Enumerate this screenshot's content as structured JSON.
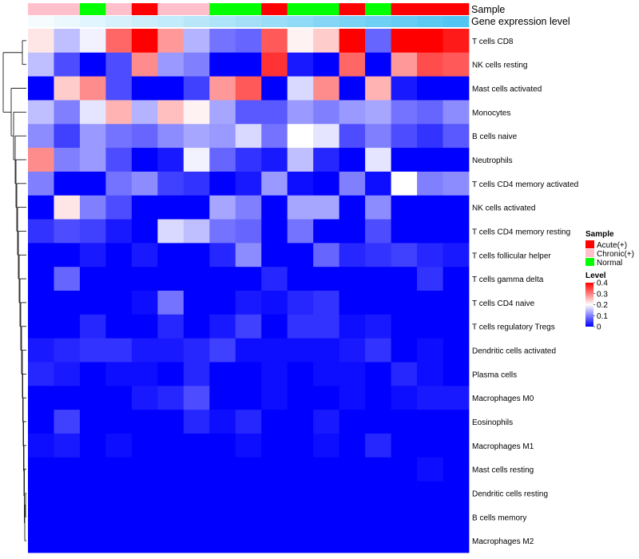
{
  "chart_data": {
    "type": "heatmap",
    "annotation_labels": [
      "Sample",
      "Gene expression level"
    ],
    "sample_annotation": [
      "Chronic(+)",
      "Chronic(+)",
      "Normal",
      "Chronic(+)",
      "Acute(+)",
      "Chronic(+)",
      "Chronic(+)",
      "Normal",
      "Normal",
      "Acute(+)",
      "Normal",
      "Normal",
      "Acute(+)",
      "Normal",
      "Acute(+)",
      "Acute(+)",
      "Acute(+)"
    ],
    "gene_expression_level": [
      0.05,
      0.1,
      0.15,
      0.2,
      0.25,
      0.3,
      0.35,
      0.4,
      0.45,
      0.5,
      0.55,
      0.6,
      0.65,
      0.7,
      0.75,
      0.8,
      0.85
    ],
    "rows": [
      "T cells CD8",
      "NK cells resting",
      "Mast cells activated",
      "Monocytes",
      "B cells naive",
      "Neutrophils",
      "T cells CD4 memory activated",
      "NK cells activated",
      "T cells CD4 memory resting",
      "T cells follicular helper",
      "T cells gamma delta",
      "T cells CD4 naive",
      "T cells regulatory  Tregs",
      "Dendritic cells activated",
      "Plasma cells",
      "Macrophages M0",
      "Eosinophils",
      "Macrophages M1",
      "Mast cells resting",
      "Dendritic cells resting",
      "B cells memory",
      "Macrophages M2"
    ],
    "values": [
      [
        0.22,
        0.15,
        0.19,
        0.32,
        0.4,
        0.28,
        0.14,
        0.09,
        0.08,
        0.33,
        0.21,
        0.24,
        0.4,
        0.08,
        0.4,
        0.4,
        0.38
      ],
      [
        0.15,
        0.06,
        0.0,
        0.06,
        0.29,
        0.12,
        0.1,
        0.0,
        0.0,
        0.36,
        0.02,
        0.0,
        0.32,
        0.0,
        0.28,
        0.34,
        0.33
      ],
      [
        0.0,
        0.24,
        0.29,
        0.06,
        0.0,
        0.0,
        0.05,
        0.28,
        0.33,
        0.0,
        0.17,
        0.29,
        0.0,
        0.26,
        0.02,
        0.0,
        0.0
      ],
      [
        0.15,
        0.1,
        0.18,
        0.26,
        0.14,
        0.25,
        0.21,
        0.13,
        0.07,
        0.07,
        0.12,
        0.1,
        0.12,
        0.13,
        0.09,
        0.08,
        0.11
      ],
      [
        0.11,
        0.05,
        0.12,
        0.09,
        0.08,
        0.11,
        0.13,
        0.12,
        0.17,
        0.09,
        0.2,
        0.18,
        0.06,
        0.1,
        0.06,
        0.04,
        0.07
      ],
      [
        0.29,
        0.1,
        0.12,
        0.06,
        0.0,
        0.02,
        0.19,
        0.08,
        0.04,
        0.02,
        0.15,
        0.03,
        0.0,
        0.18,
        0.0,
        0.0,
        0.0
      ],
      [
        0.1,
        0.0,
        0.0,
        0.09,
        0.11,
        0.05,
        0.04,
        0.0,
        0.02,
        0.12,
        0.01,
        0.0,
        0.1,
        0.01,
        0.2,
        0.1,
        0.11
      ],
      [
        0.0,
        0.22,
        0.1,
        0.06,
        0.0,
        0.0,
        0.0,
        0.13,
        0.1,
        0.0,
        0.13,
        0.13,
        0.0,
        0.11,
        0.0,
        0.0,
        0.0
      ],
      [
        0.04,
        0.06,
        0.05,
        0.02,
        0.0,
        0.17,
        0.15,
        0.09,
        0.08,
        0.0,
        0.09,
        0.0,
        0.0,
        0.06,
        0.0,
        0.0,
        0.0
      ],
      [
        0.0,
        0.0,
        0.02,
        0.0,
        0.02,
        0.0,
        0.0,
        0.03,
        0.11,
        0.0,
        0.0,
        0.08,
        0.03,
        0.04,
        0.05,
        0.03,
        0.02
      ],
      [
        0.0,
        0.08,
        0.0,
        0.0,
        0.0,
        0.0,
        0.0,
        0.0,
        0.0,
        0.03,
        0.0,
        0.0,
        0.0,
        0.0,
        0.0,
        0.04,
        0.0
      ],
      [
        0.0,
        0.0,
        0.0,
        0.0,
        0.01,
        0.09,
        0.0,
        0.0,
        0.02,
        0.01,
        0.03,
        0.04,
        0.0,
        0.0,
        0.0,
        0.0,
        0.0
      ],
      [
        0.0,
        0.0,
        0.03,
        0.0,
        0.0,
        0.03,
        0.0,
        0.02,
        0.05,
        0.0,
        0.04,
        0.04,
        0.01,
        0.02,
        0.0,
        0.0,
        0.0
      ],
      [
        0.02,
        0.03,
        0.04,
        0.04,
        0.02,
        0.02,
        0.03,
        0.05,
        0.01,
        0.01,
        0.01,
        0.01,
        0.02,
        0.04,
        0.0,
        0.01,
        0.0
      ],
      [
        0.03,
        0.02,
        0.0,
        0.01,
        0.01,
        0.0,
        0.03,
        0.0,
        0.0,
        0.01,
        0.0,
        0.01,
        0.01,
        0.0,
        0.03,
        0.01,
        0.0
      ],
      [
        0.0,
        0.0,
        0.0,
        0.0,
        0.02,
        0.03,
        0.06,
        0.0,
        0.0,
        0.01,
        0.0,
        0.0,
        0.01,
        0.0,
        0.01,
        0.02,
        0.02
      ],
      [
        0.0,
        0.05,
        0.0,
        0.0,
        0.0,
        0.0,
        0.03,
        0.01,
        0.03,
        0.0,
        0.0,
        0.02,
        0.0,
        0.0,
        0.0,
        0.0,
        0.0
      ],
      [
        0.01,
        0.02,
        0.0,
        0.01,
        0.0,
        0.0,
        0.0,
        0.0,
        0.01,
        0.0,
        0.0,
        0.01,
        0.0,
        0.03,
        0.0,
        0.0,
        0.0
      ],
      [
        0.0,
        0.0,
        0.0,
        0.0,
        0.0,
        0.0,
        0.0,
        0.0,
        0.0,
        0.0,
        0.0,
        0.0,
        0.0,
        0.0,
        0.0,
        0.01,
        0.0
      ],
      [
        0.0,
        0.0,
        0.0,
        0.0,
        0.0,
        0.0,
        0.0,
        0.0,
        0.0,
        0.0,
        0.0,
        0.0,
        0.0,
        0.0,
        0.0,
        0.0,
        0.0
      ],
      [
        0.0,
        0.0,
        0.0,
        0.0,
        0.0,
        0.0,
        0.0,
        0.0,
        0.0,
        0.0,
        0.0,
        0.0,
        0.0,
        0.0,
        0.0,
        0.0,
        0.0
      ],
      [
        0.0,
        0.0,
        0.0,
        0.0,
        0.0,
        0.0,
        0.0,
        0.0,
        0.0,
        0.0,
        0.0,
        0.0,
        0.0,
        0.0,
        0.0,
        0.0,
        0.0
      ]
    ],
    "color_scale": {
      "low": "#0000ff",
      "mid": "#ffffff",
      "high": "#ff0000",
      "min": 0,
      "mid_value": 0.2,
      "max": 0.4
    },
    "legend": {
      "sample_title": "Sample",
      "sample_items": [
        {
          "label": "Acute(+)",
          "color": "#ff0000"
        },
        {
          "label": "Chronic(+)",
          "color": "#ffc0cb"
        },
        {
          "label": "Normal",
          "color": "#00ff00"
        }
      ],
      "level_title": "Level",
      "level_ticks": [
        "0.4",
        "0.3",
        "0.2",
        "0.1",
        "0"
      ],
      "level_tick_values": [
        0.4,
        0.3,
        0.2,
        0.1,
        0
      ]
    },
    "gene_expression_colors": {
      "low": "#ffffff",
      "high": "#33bbf0"
    },
    "row_dendrogram": true
  }
}
